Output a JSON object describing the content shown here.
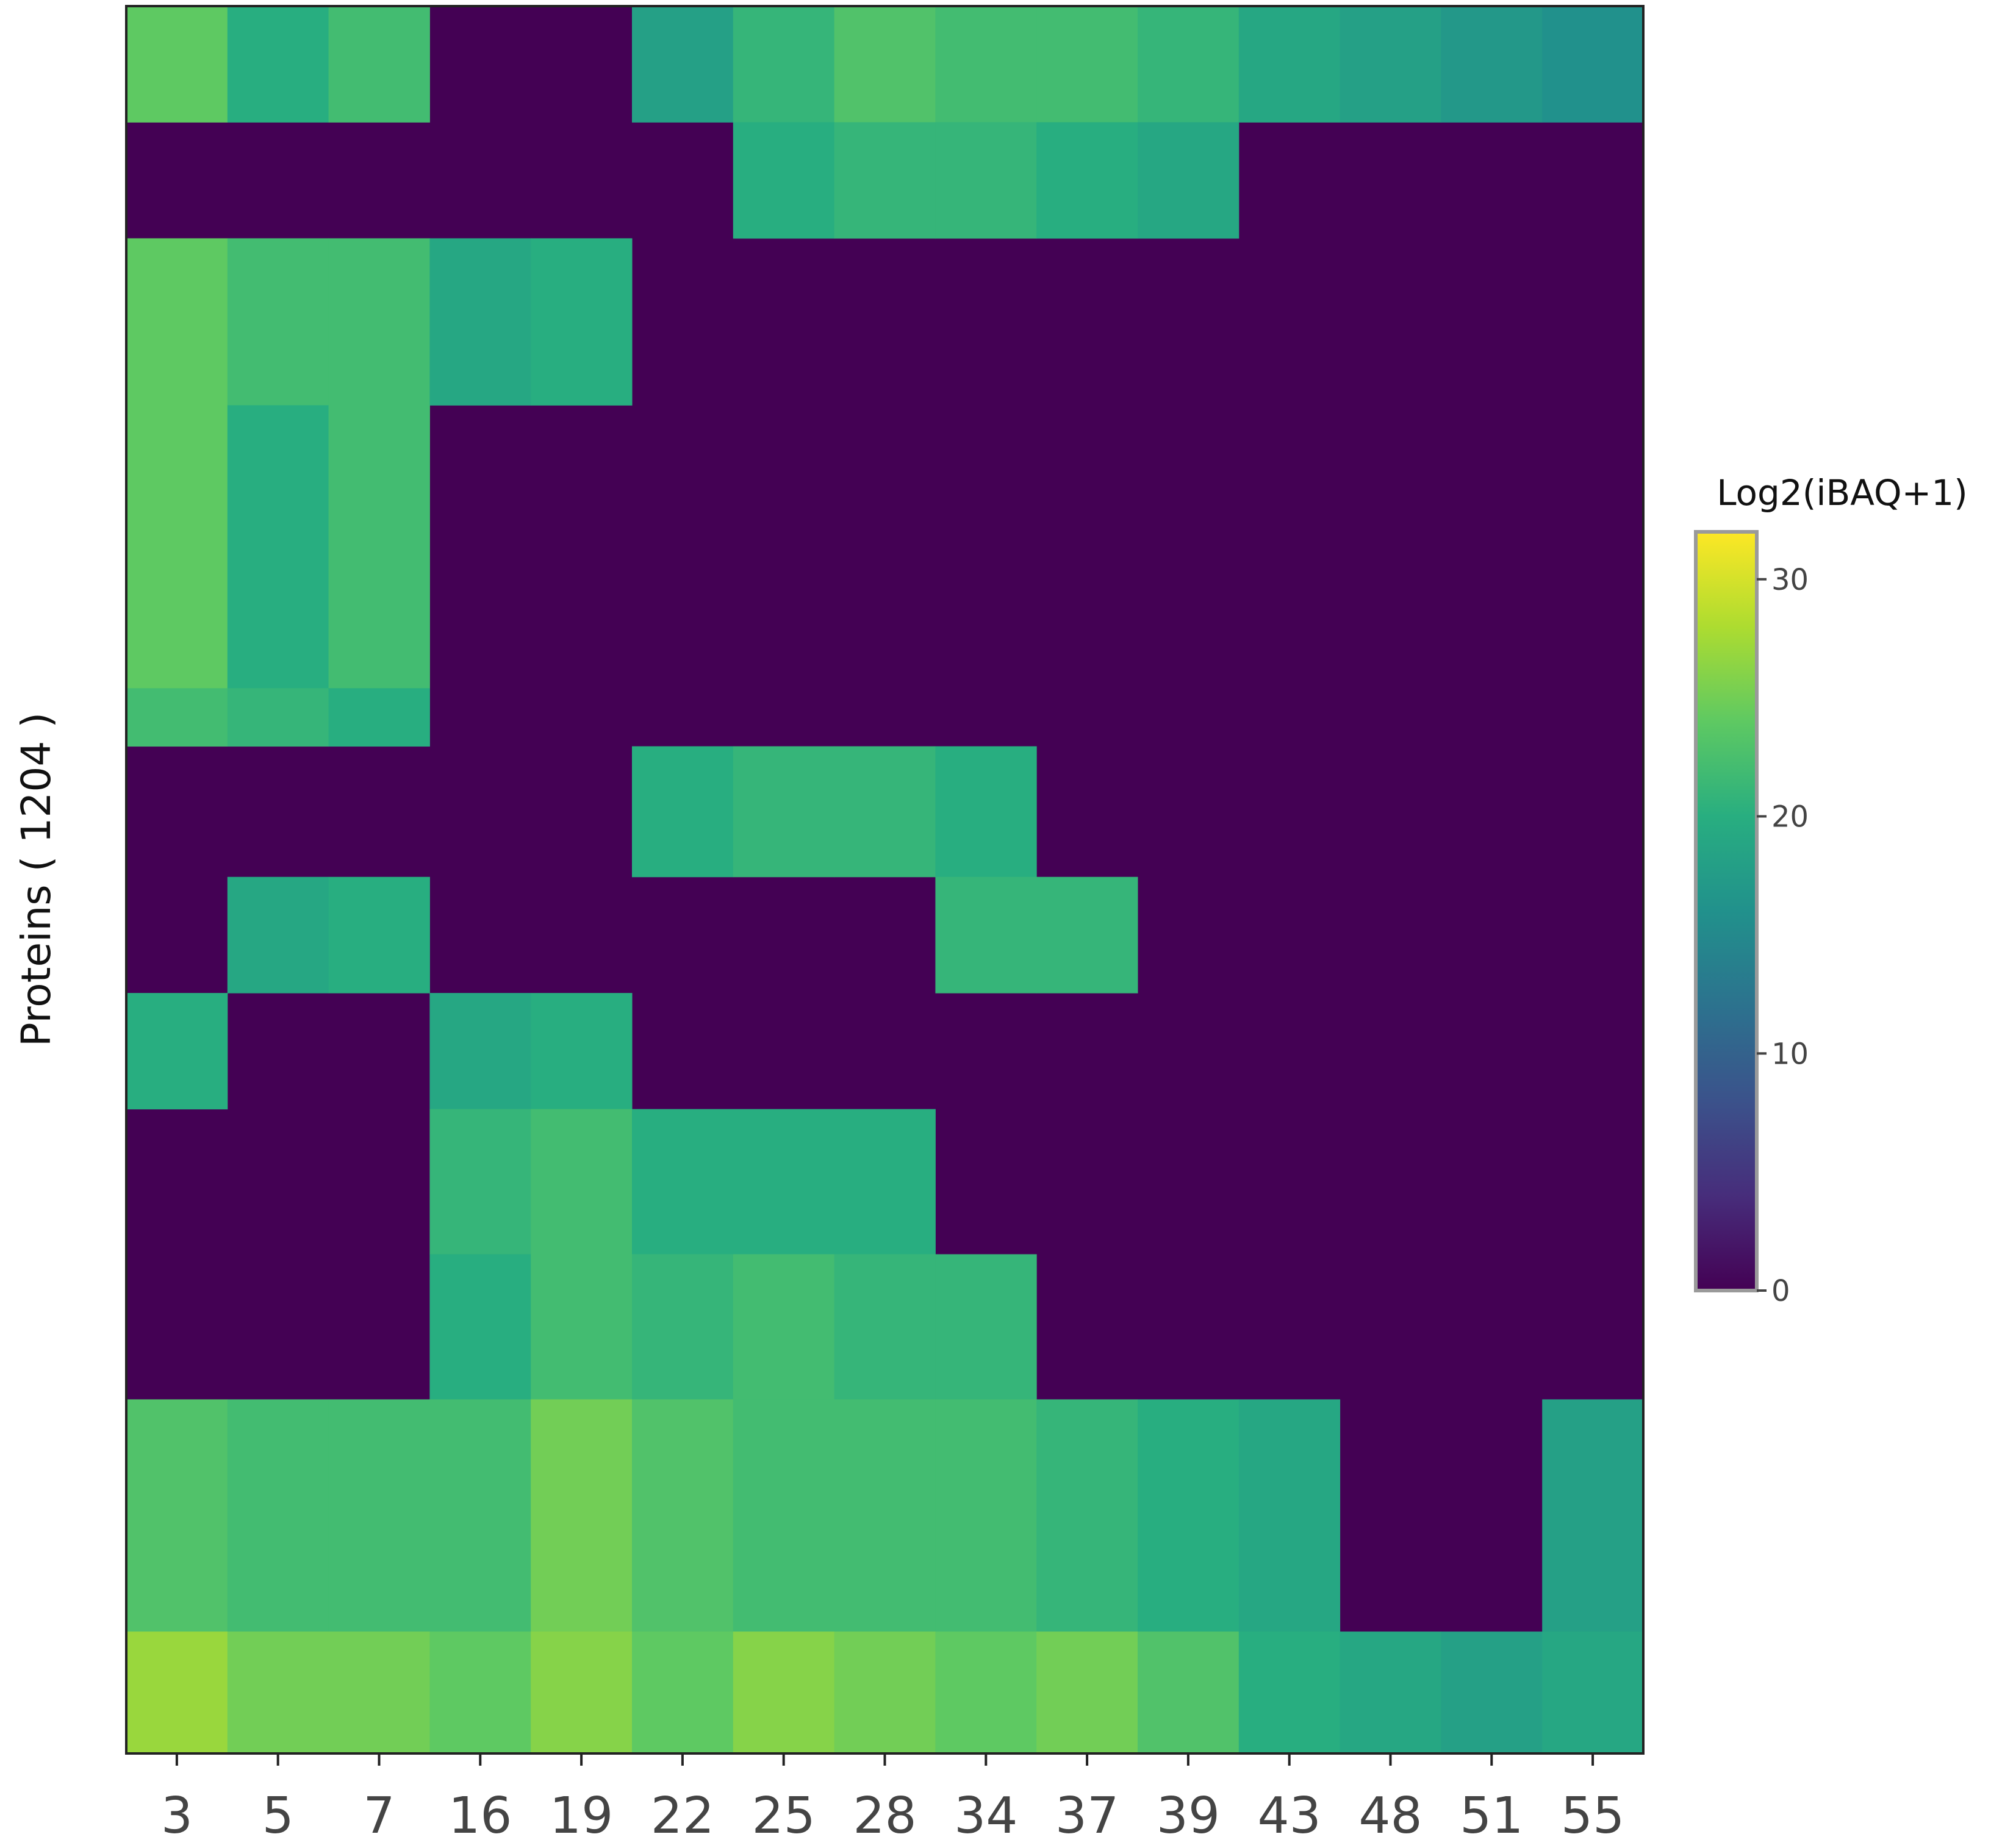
{
  "chart_data": {
    "type": "heatmap",
    "title": "",
    "xlabel": "",
    "ylabel": "Proteins ( 1204 )",
    "categories": [
      "3",
      "5",
      "7",
      "16",
      "19",
      "22",
      "25",
      "28",
      "34",
      "37",
      "39",
      "43",
      "48",
      "51",
      "55"
    ],
    "row_count": 1204,
    "colorscale": "viridis",
    "colorbar": {
      "title": "Log2(iBAQ+1)",
      "range": [
        0,
        32
      ],
      "ticks": [
        0,
        10,
        20,
        30
      ],
      "colors": [
        "#440154",
        "#472d7b",
        "#3b528b",
        "#2c728e",
        "#21918c",
        "#28ae80",
        "#5ec962",
        "#addc30",
        "#fde725"
      ]
    },
    "grid": false,
    "blocks": [
      {
        "rows": [
          0,
          80
        ],
        "values": [
          24,
          20,
          22,
          0,
          0,
          18,
          21,
          23,
          22,
          22,
          21,
          19,
          18,
          17,
          16
        ]
      },
      {
        "rows": [
          80,
          160
        ],
        "values": [
          0,
          0,
          0,
          0,
          0,
          0,
          20,
          21,
          21,
          20,
          19,
          0,
          0,
          0,
          0
        ]
      },
      {
        "rows": [
          160,
          275
        ],
        "values": [
          24,
          22,
          22,
          19,
          20,
          0,
          0,
          0,
          0,
          0,
          0,
          0,
          0,
          0,
          0
        ]
      },
      {
        "rows": [
          275,
          470
        ],
        "values": [
          24,
          20,
          22,
          0,
          0,
          0,
          0,
          0,
          0,
          0,
          0,
          0,
          0,
          0,
          0
        ]
      },
      {
        "rows": [
          470,
          510
        ],
        "values": [
          22,
          21,
          20,
          0,
          0,
          0,
          0,
          0,
          0,
          0,
          0,
          0,
          0,
          0,
          0
        ]
      },
      {
        "rows": [
          510,
          600
        ],
        "values": [
          0,
          0,
          0,
          0,
          0,
          20,
          21,
          21,
          20,
          0,
          0,
          0,
          0,
          0,
          0
        ]
      },
      {
        "rows": [
          600,
          680
        ],
        "values": [
          0,
          19,
          20,
          0,
          0,
          0,
          0,
          0,
          21,
          21,
          0,
          0,
          0,
          0,
          0
        ]
      },
      {
        "rows": [
          680,
          760
        ],
        "values": [
          20,
          0,
          0,
          19,
          20,
          0,
          0,
          0,
          0,
          0,
          0,
          0,
          0,
          0,
          0
        ]
      },
      {
        "rows": [
          760,
          860
        ],
        "values": [
          0,
          0,
          0,
          21,
          22,
          20,
          20,
          20,
          0,
          0,
          0,
          0,
          0,
          0,
          0
        ]
      },
      {
        "rows": [
          860,
          960
        ],
        "values": [
          0,
          0,
          0,
          20,
          22,
          21,
          22,
          21,
          21,
          0,
          0,
          0,
          0,
          0,
          0
        ]
      },
      {
        "rows": [
          960,
          1120
        ],
        "values": [
          23,
          22,
          22,
          22,
          25,
          23,
          22,
          22,
          22,
          21,
          20,
          19,
          0,
          0,
          18
        ]
      },
      {
        "rows": [
          1120,
          1204
        ],
        "values": [
          27,
          25,
          25,
          24,
          26,
          24,
          26,
          25,
          24,
          25,
          23,
          20,
          19,
          18,
          19
        ]
      }
    ]
  }
}
